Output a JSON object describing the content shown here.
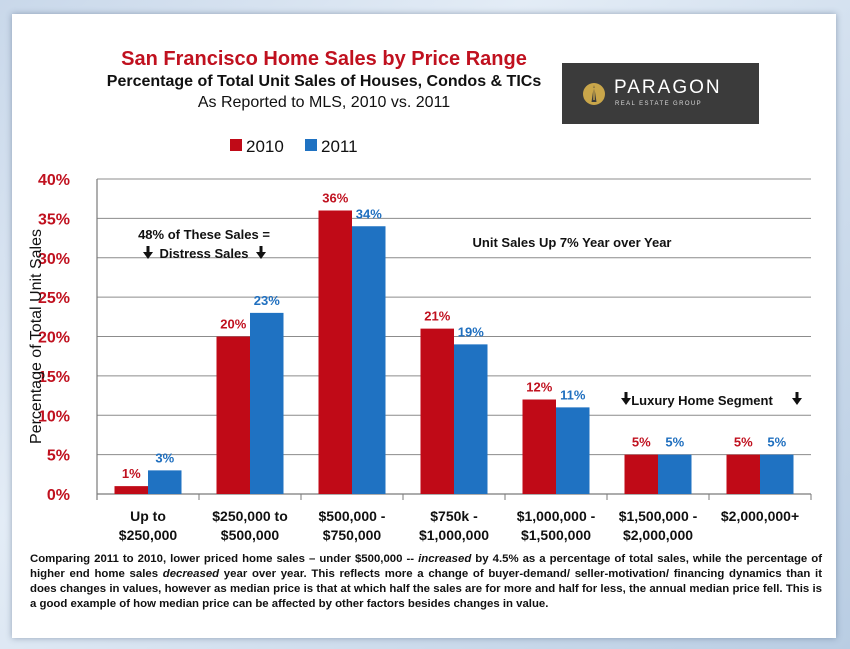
{
  "logo": {
    "name": "PARAGON",
    "subtitle": "REAL ESTATE GROUP",
    "colors": {
      "background": "#3b3b3b",
      "mark": "#c9a64a"
    }
  },
  "chart_data": {
    "type": "bar",
    "title": "San Francisco Home Sales by Price Range",
    "subtitle": "Percentage of Total Unit Sales of Houses, Condos & TICs",
    "subtitle2": "As Reported to MLS, 2010 vs. 2011",
    "ylabel": "Percentage of Total Unit Sales",
    "xlabel": "",
    "ylim": [
      0,
      40
    ],
    "yticks": [
      0,
      5,
      10,
      15,
      20,
      25,
      30,
      35,
      40
    ],
    "ytick_labels": [
      "0%",
      "5%",
      "10%",
      "15%",
      "20%",
      "25%",
      "30%",
      "35%",
      "40%"
    ],
    "grid": true,
    "legend_position": "top",
    "categories": [
      [
        "Up to",
        "$250,000"
      ],
      [
        "$250,000 to",
        "$500,000"
      ],
      [
        "$500,000 -",
        "$750,000"
      ],
      [
        "$750k -",
        "$1,000,000"
      ],
      [
        "$1,000,000 -",
        "$1,500,000"
      ],
      [
        "$1,500,000 -",
        "$2,000,000"
      ],
      [
        "$2,000,000+"
      ]
    ],
    "series": [
      {
        "name": "2010",
        "color": "#c00a17",
        "label_color": "#c0111f",
        "values": [
          1,
          20,
          36,
          21,
          12,
          5,
          5
        ],
        "labels": [
          "1%",
          "20%",
          "36%",
          "21%",
          "12%",
          "5%",
          "5%"
        ]
      },
      {
        "name": "2011",
        "color": "#1f72c2",
        "label_color": "#1f6fbf",
        "values": [
          3,
          23,
          34,
          19,
          11,
          5,
          5
        ],
        "labels": [
          "3%",
          "23%",
          "34%",
          "19%",
          "11%",
          "5%",
          "5%"
        ]
      }
    ],
    "annotations": {
      "distress_line1": "48% of These Sales =",
      "distress_line2": "Distress Sales",
      "unit_sales": "Unit Sales Up 7% Year over Year",
      "luxury": "Luxury Home Segment"
    }
  },
  "footer": {
    "part1": "Comparing 2011 to 2010, lower priced home sales – under $500,000 -- ",
    "em1": "increased",
    "part2": " by 4.5% as a percentage of total sales, while the percentage of higher end home sales ",
    "em2": "decreased",
    "part3": " year over year. This reflects more a change of buyer-demand/ seller-motivation/ financing dynamics than it does changes in values, however as median price is that at which half the sales are for more and half for less, the annual median price fell. This is a good example of how median price can be affected by other factors besides changes in value."
  }
}
